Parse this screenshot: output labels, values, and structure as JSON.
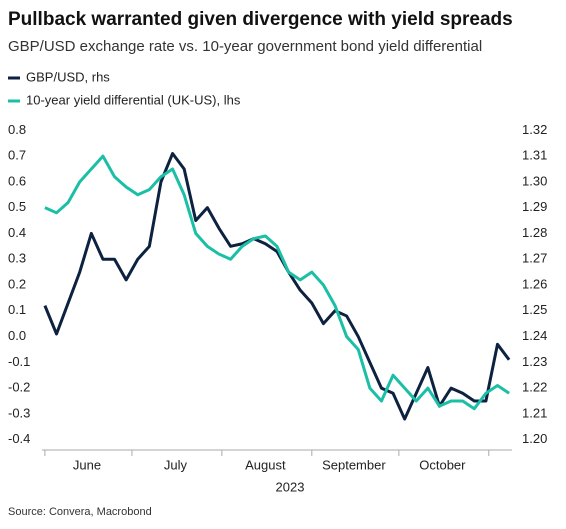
{
  "chart_data": {
    "type": "line",
    "title": "Pullback warranted given divergence with yield spreads",
    "subtitle": "GBP/USD exchange rate vs. 10-year government bond yield differential",
    "xlabel": "2023",
    "source": "Source: Convera, Macrobond",
    "xlim": [
      -1,
      161
    ],
    "xticks": [
      {
        "value": 14.5,
        "label": "June"
      },
      {
        "value": 45,
        "label": "July"
      },
      {
        "value": 76,
        "label": "August"
      },
      {
        "value": 106.5,
        "label": "September"
      },
      {
        "value": 137,
        "label": "October"
      }
    ],
    "xminorticks": [
      0,
      30,
      61,
      92,
      122,
      153
    ],
    "x": [
      0,
      4,
      8,
      12,
      16,
      20,
      24,
      28,
      32,
      36,
      40,
      44,
      48,
      52,
      56,
      60,
      64,
      68,
      72,
      76,
      80,
      84,
      88,
      92,
      96,
      100,
      104,
      108,
      112,
      116,
      120,
      124,
      128,
      132,
      136,
      140,
      144,
      148,
      152,
      156,
      160
    ],
    "ylim": [
      -0.44,
      0.84
    ],
    "yticks": [
      {
        "value": 0.8,
        "label": "0.8"
      },
      {
        "value": 0.7,
        "label": "0.7"
      },
      {
        "value": 0.6,
        "label": "0.6"
      },
      {
        "value": 0.5,
        "label": "0.5"
      },
      {
        "value": 0.4,
        "label": "0.4"
      },
      {
        "value": 0.3,
        "label": "0.3"
      },
      {
        "value": 0.2,
        "label": "0.2"
      },
      {
        "value": 0.1,
        "label": "0.1"
      },
      {
        "value": 0,
        "label": "0.0"
      },
      {
        "value": -0.1,
        "label": "-0.1"
      },
      {
        "value": -0.2,
        "label": "-0.2"
      },
      {
        "value": -0.3,
        "label": "-0.3"
      },
      {
        "value": -0.4,
        "label": "-0.4"
      }
    ],
    "y2lim": [
      1.196,
      1.324
    ],
    "y2ticks": [
      {
        "value": 1.32,
        "label": "1.32"
      },
      {
        "value": 1.31,
        "label": "1.31"
      },
      {
        "value": 1.3,
        "label": "1.30"
      },
      {
        "value": 1.29,
        "label": "1.29"
      },
      {
        "value": 1.28,
        "label": "1.28"
      },
      {
        "value": 1.27,
        "label": "1.27"
      },
      {
        "value": 1.26,
        "label": "1.26"
      },
      {
        "value": 1.25,
        "label": "1.25"
      },
      {
        "value": 1.24,
        "label": "1.24"
      },
      {
        "value": 1.23,
        "label": "1.23"
      },
      {
        "value": 1.22,
        "label": "1.22"
      },
      {
        "value": 1.21,
        "label": "1.21"
      },
      {
        "value": 1.2,
        "label": "1.20"
      }
    ],
    "series": [
      {
        "name": "GBP/USD, rhs",
        "color": "#0d2240",
        "axis": "y2",
        "values": [
          1.252,
          1.241,
          1.253,
          1.265,
          1.28,
          1.27,
          1.27,
          1.262,
          1.27,
          1.275,
          1.3,
          1.311,
          1.305,
          1.285,
          1.29,
          1.282,
          1.275,
          1.276,
          1.278,
          1.276,
          1.273,
          1.265,
          1.258,
          1.253,
          1.245,
          1.25,
          1.248,
          1.24,
          1.23,
          1.22,
          1.218,
          1.208,
          1.218,
          1.228,
          1.213,
          1.22,
          1.218,
          1.215,
          1.215,
          1.237,
          1.231
        ]
      },
      {
        "name": "10-year yield differential (UK-US), lhs",
        "color": "#1bbfa6",
        "values": [
          0.5,
          0.48,
          0.52,
          0.6,
          0.65,
          0.7,
          0.62,
          0.58,
          0.55,
          0.57,
          0.62,
          0.65,
          0.55,
          0.4,
          0.35,
          0.32,
          0.3,
          0.35,
          0.38,
          0.39,
          0.35,
          0.25,
          0.22,
          0.25,
          0.2,
          0.12,
          0,
          -0.05,
          -0.2,
          -0.25,
          -0.15,
          -0.2,
          -0.25,
          -0.2,
          -0.27,
          -0.25,
          -0.25,
          -0.28,
          -0.22,
          -0.19,
          -0.22
        ]
      }
    ]
  }
}
